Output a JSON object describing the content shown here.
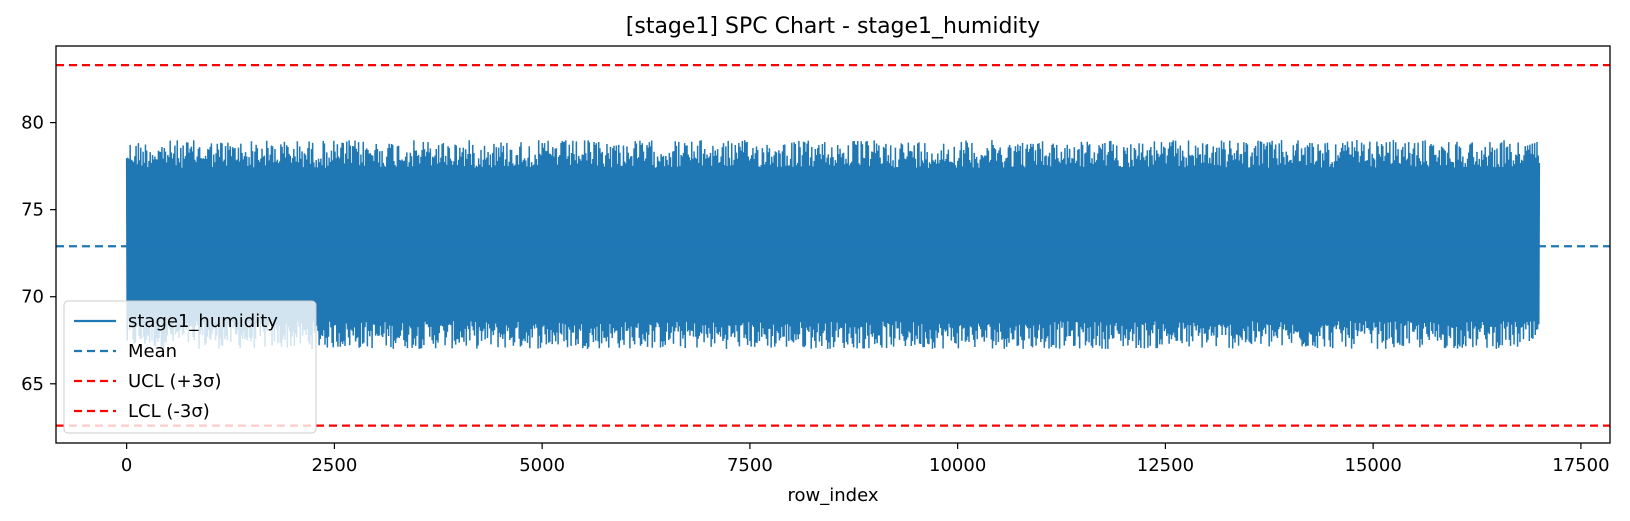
{
  "chart_data": {
    "type": "line",
    "title": "[stage1] SPC Chart - stage1_humidity",
    "xlabel": "row_index",
    "ylabel": "",
    "xlim": [
      -850,
      17850
    ],
    "ylim": [
      61.6,
      84.4
    ],
    "xticks": [
      0,
      2500,
      5000,
      7500,
      10000,
      12500,
      15000,
      17500
    ],
    "xtick_labels": [
      "0",
      "2500",
      "5000",
      "7500",
      "10000",
      "12500",
      "15000",
      "17500"
    ],
    "yticks": [
      65,
      70,
      75,
      80
    ],
    "ytick_labels": [
      "65",
      "70",
      "75",
      "80"
    ],
    "grid": false,
    "legend_position": "lower-left",
    "series": [
      {
        "name": "stage1_humidity",
        "color": "#1f77b4",
        "style": "solid",
        "x_range": [
          0,
          17000
        ],
        "approx_min": 67.0,
        "approx_max": 79.0,
        "approx_mean": 72.9
      },
      {
        "name": "Mean",
        "color": "#1f77b4",
        "style": "dashed",
        "value": 72.9
      },
      {
        "name": "UCL (+3σ)",
        "color": "#ff0000",
        "style": "dashed",
        "value": 83.3
      },
      {
        "name": "LCL (-3σ)",
        "color": "#ff0000",
        "style": "dashed",
        "value": 62.6
      }
    ]
  }
}
